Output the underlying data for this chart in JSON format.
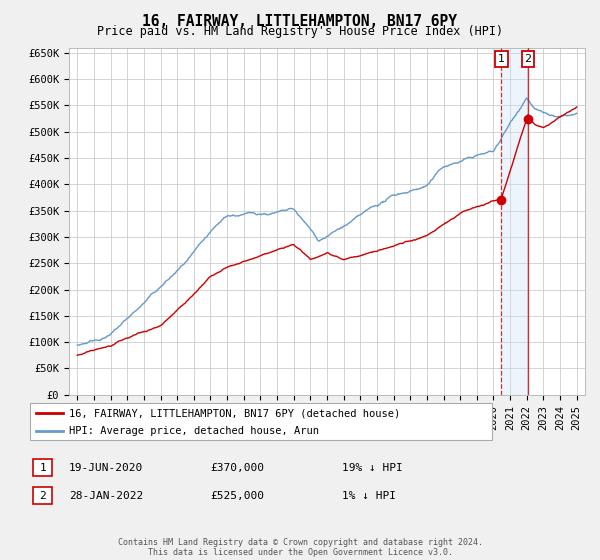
{
  "title": "16, FAIRWAY, LITTLEHAMPTON, BN17 6PY",
  "subtitle": "Price paid vs. HM Land Registry's House Price Index (HPI)",
  "ylim": [
    0,
    660000
  ],
  "yticks": [
    0,
    50000,
    100000,
    150000,
    200000,
    250000,
    300000,
    350000,
    400000,
    450000,
    500000,
    550000,
    600000,
    650000
  ],
  "ytick_labels": [
    "£0",
    "£50K",
    "£100K",
    "£150K",
    "£200K",
    "£250K",
    "£300K",
    "£350K",
    "£400K",
    "£450K",
    "£500K",
    "£550K",
    "£600K",
    "£650K"
  ],
  "background_color": "#f0f0f0",
  "plot_bg": "#ffffff",
  "grid_color": "#cccccc",
  "red_color": "#cc0000",
  "blue_color": "#6699cc",
  "marker1_date": 2020.47,
  "marker2_date": 2022.08,
  "marker1_price": 370000,
  "marker2_price": 525000,
  "span_color": "#ddeeff",
  "legend_line1": "16, FAIRWAY, LITTLEHAMPTON, BN17 6PY (detached house)",
  "legend_line2": "HPI: Average price, detached house, Arun",
  "annotation1": "1",
  "annotation2": "2",
  "note1_label": "1",
  "note1_date": "19-JUN-2020",
  "note1_price": "£370,000",
  "note1_hpi": "19% ↓ HPI",
  "note2_label": "2",
  "note2_date": "28-JAN-2022",
  "note2_price": "£525,000",
  "note2_hpi": "1% ↓ HPI",
  "footer": "Contains HM Land Registry data © Crown copyright and database right 2024.\nThis data is licensed under the Open Government Licence v3.0."
}
